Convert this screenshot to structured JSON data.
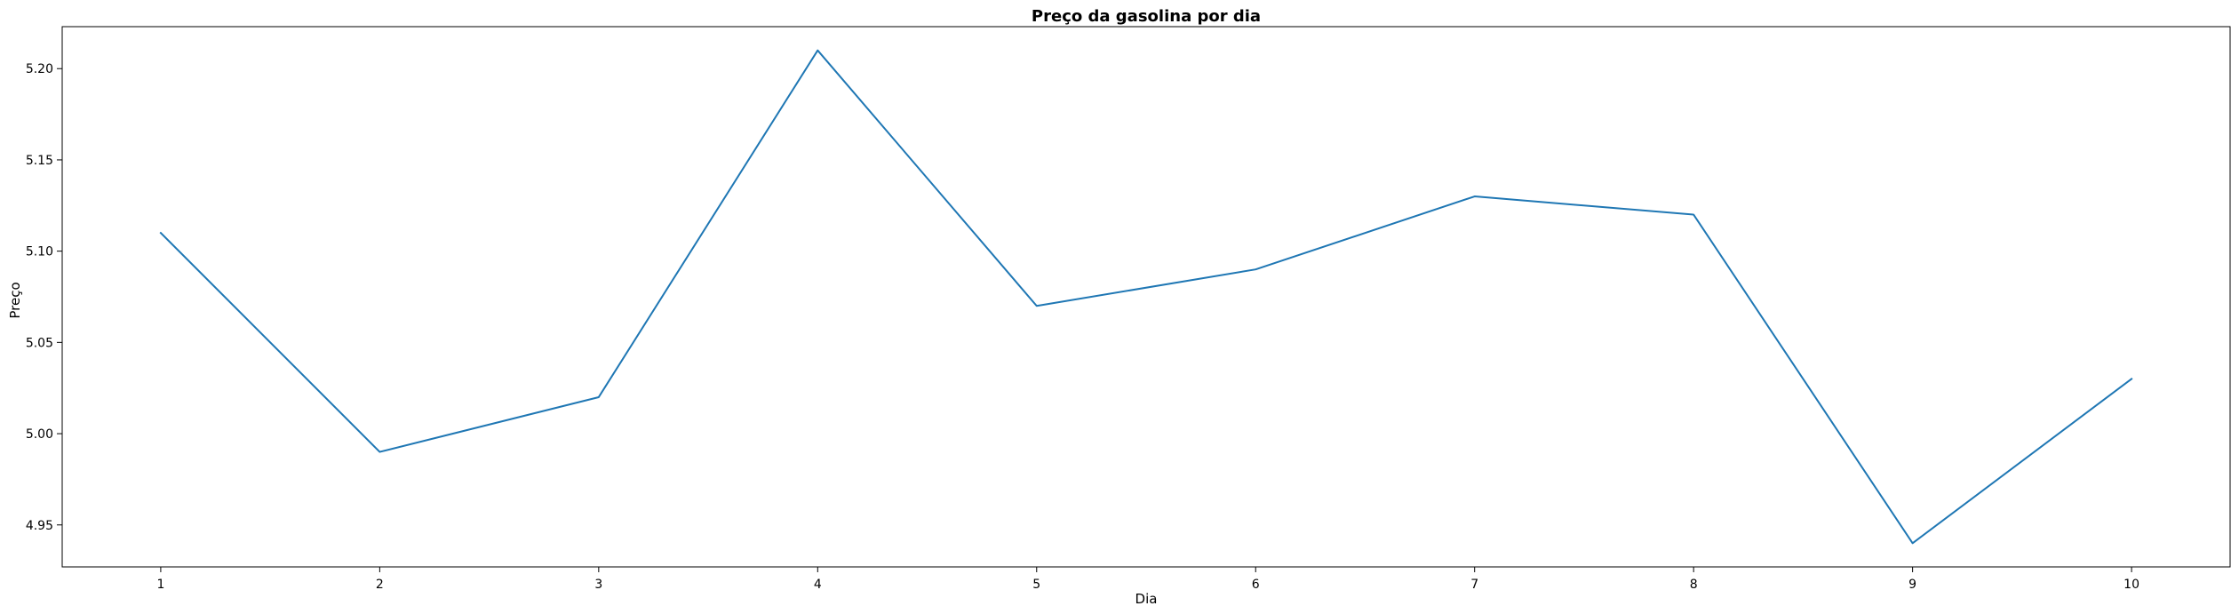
{
  "chart_data": {
    "type": "line",
    "title": "Preço da gasolina por dia",
    "xlabel": "Dia",
    "ylabel": "Preço",
    "x": [
      1,
      2,
      3,
      4,
      5,
      6,
      7,
      8,
      9,
      10
    ],
    "series": [
      {
        "values": [
          5.11,
          4.99,
          5.02,
          5.21,
          5.07,
          5.09,
          5.13,
          5.12,
          4.94,
          5.03
        ],
        "color": "#1f77b4"
      }
    ],
    "xlim": [
      0.55,
      10.45
    ],
    "ylim": [
      4.927,
      5.223
    ],
    "xticks": [
      1,
      2,
      3,
      4,
      5,
      6,
      7,
      8,
      9,
      10
    ],
    "xtick_labels": [
      "1",
      "2",
      "3",
      "4",
      "5",
      "6",
      "7",
      "8",
      "9",
      "10"
    ],
    "yticks": [
      4.95,
      5.0,
      5.05,
      5.1,
      5.15,
      5.2
    ],
    "ytick_labels": [
      "4.95",
      "5.00",
      "5.05",
      "5.10",
      "5.15",
      "5.20"
    ],
    "grid": false,
    "legend": "none"
  }
}
